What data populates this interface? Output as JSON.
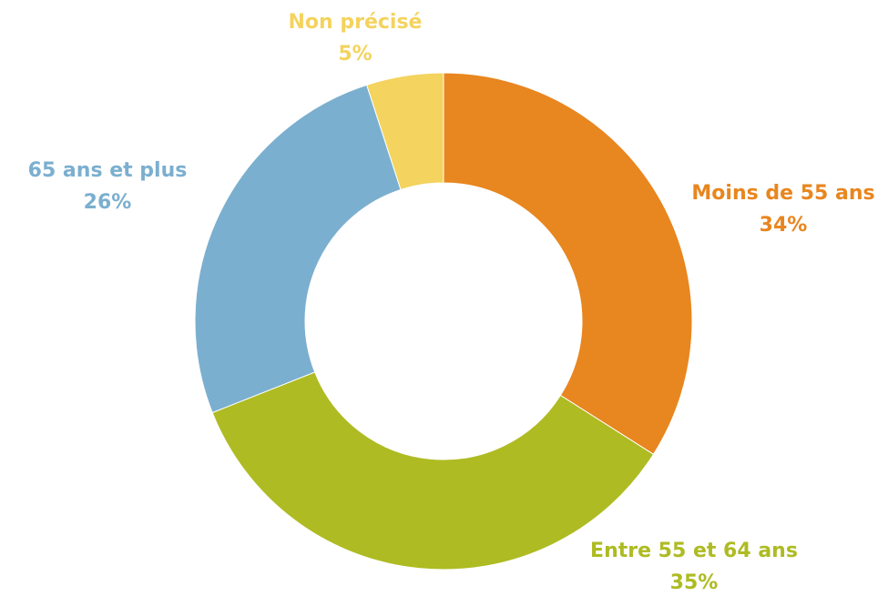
{
  "chart_data": {
    "type": "donut",
    "categories": [
      "Moins de 55 ans",
      "Entre 55 et 64 ans",
      "65 ans et plus",
      "Non précisé"
    ],
    "values": [
      34,
      35,
      26,
      5
    ],
    "value_labels": [
      "34%",
      "35%",
      "26%",
      "5%"
    ],
    "colors": [
      "#E8861F",
      "#AEBB22",
      "#7BAFCF",
      "#F4D35E"
    ]
  }
}
